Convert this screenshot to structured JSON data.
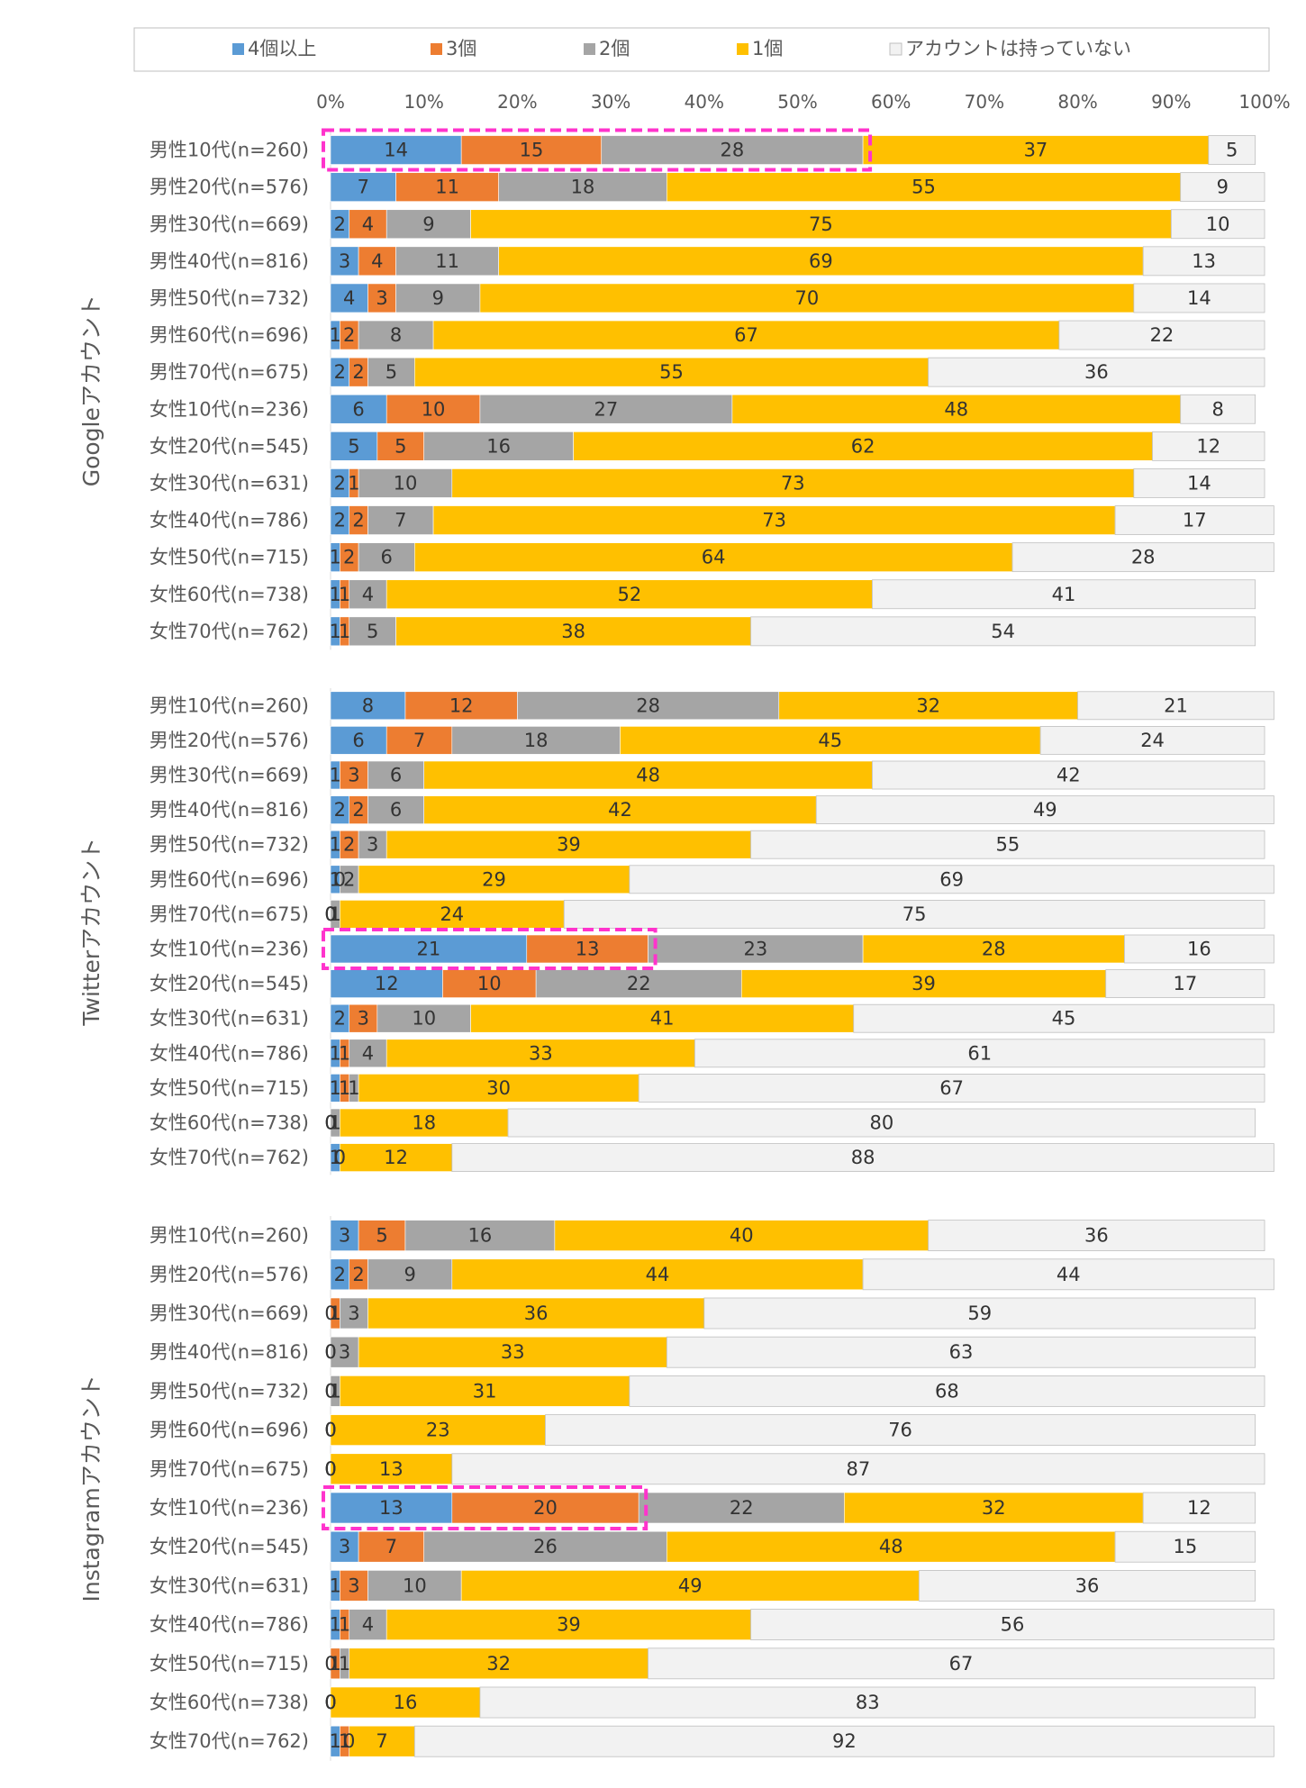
{
  "legend": [
    {
      "label": "4個以上",
      "color": "#5B9BD5"
    },
    {
      "label": "3個",
      "color": "#ED7D31"
    },
    {
      "label": "2個",
      "color": "#A5A5A5"
    },
    {
      "label": "1個",
      "color": "#FFC000"
    },
    {
      "label": "アカウントは持っていない",
      "color": "#F2F2F2"
    }
  ],
  "chart_data": {
    "type": "bar",
    "orientation": "horizontal",
    "stacked": true,
    "percent_stacked": true,
    "xlim": [
      0,
      100
    ],
    "x_ticks": [
      "0%",
      "10%",
      "20%",
      "30%",
      "40%",
      "50%",
      "60%",
      "70%",
      "80%",
      "90%",
      "100%"
    ],
    "grid": false,
    "legend_position": "top",
    "series_names": [
      "4個以上",
      "3個",
      "2個",
      "1個",
      "アカウントは持っていない"
    ],
    "series_colors": [
      "#5B9BD5",
      "#ED7D31",
      "#A5A5A5",
      "#FFC000",
      "#F2F2F2"
    ],
    "groups": [
      {
        "label": "Googleアカウント",
        "categories": [
          "男性10代(n=260)",
          "男性20代(n=576)",
          "男性30代(n=669)",
          "男性40代(n=816)",
          "男性50代(n=732)",
          "男性60代(n=696)",
          "男性70代(n=675)",
          "女性10代(n=236)",
          "女性20代(n=545)",
          "女性30代(n=631)",
          "女性40代(n=786)",
          "女性50代(n=715)",
          "女性60代(n=738)",
          "女性70代(n=762)"
        ],
        "values": [
          [
            14,
            15,
            28,
            37,
            5
          ],
          [
            7,
            11,
            18,
            55,
            9
          ],
          [
            2,
            4,
            9,
            75,
            10
          ],
          [
            3,
            4,
            11,
            69,
            13
          ],
          [
            4,
            3,
            9,
            70,
            14
          ],
          [
            1,
            2,
            8,
            67,
            22
          ],
          [
            2,
            2,
            5,
            55,
            36
          ],
          [
            6,
            10,
            27,
            48,
            8
          ],
          [
            5,
            5,
            16,
            62,
            12
          ],
          [
            2,
            1,
            10,
            73,
            14
          ],
          [
            2,
            2,
            7,
            73,
            17
          ],
          [
            1,
            2,
            6,
            64,
            28
          ],
          [
            1,
            1,
            4,
            52,
            41
          ],
          [
            1,
            1,
            5,
            38,
            54
          ]
        ],
        "highlights": [
          {
            "row": 0,
            "series_from": 0,
            "series_to": 2
          }
        ]
      },
      {
        "label": "Twitterアカウント",
        "categories": [
          "男性10代(n=260)",
          "男性20代(n=576)",
          "男性30代(n=669)",
          "男性40代(n=816)",
          "男性50代(n=732)",
          "男性60代(n=696)",
          "男性70代(n=675)",
          "女性10代(n=236)",
          "女性20代(n=545)",
          "女性30代(n=631)",
          "女性40代(n=786)",
          "女性50代(n=715)",
          "女性60代(n=738)",
          "女性70代(n=762)"
        ],
        "values": [
          [
            8,
            12,
            28,
            32,
            21
          ],
          [
            6,
            7,
            18,
            45,
            24
          ],
          [
            1,
            3,
            6,
            48,
            42
          ],
          [
            2,
            2,
            6,
            42,
            49
          ],
          [
            1,
            2,
            3,
            39,
            55
          ],
          [
            1,
            0,
            2,
            29,
            69
          ],
          [
            0,
            0,
            1,
            24,
            75
          ],
          [
            21,
            13,
            23,
            28,
            16
          ],
          [
            12,
            10,
            22,
            39,
            17
          ],
          [
            2,
            3,
            10,
            41,
            45
          ],
          [
            1,
            1,
            4,
            33,
            61
          ],
          [
            1,
            1,
            1,
            30,
            67
          ],
          [
            0,
            0,
            1,
            18,
            80
          ],
          [
            1,
            0,
            0,
            12,
            88
          ]
        ],
        "highlights": [
          {
            "row": 7,
            "series_from": 0,
            "series_to": 1
          }
        ]
      },
      {
        "label": "Instagramアカウント",
        "categories": [
          "男性10代(n=260)",
          "男性20代(n=576)",
          "男性30代(n=669)",
          "男性40代(n=816)",
          "男性50代(n=732)",
          "男性60代(n=696)",
          "男性70代(n=675)",
          "女性10代(n=236)",
          "女性20代(n=545)",
          "女性30代(n=631)",
          "女性40代(n=786)",
          "女性50代(n=715)",
          "女性60代(n=738)",
          "女性70代(n=762)"
        ],
        "values": [
          [
            3,
            5,
            16,
            40,
            36
          ],
          [
            2,
            2,
            9,
            44,
            44
          ],
          [
            0,
            1,
            3,
            36,
            59
          ],
          [
            0,
            0,
            3,
            33,
            63
          ],
          [
            0,
            0,
            1,
            31,
            68
          ],
          [
            0,
            0,
            0,
            23,
            76
          ],
          [
            0,
            0,
            0,
            13,
            87
          ],
          [
            13,
            20,
            22,
            32,
            12
          ],
          [
            3,
            7,
            26,
            48,
            15
          ],
          [
            1,
            3,
            10,
            49,
            36
          ],
          [
            1,
            1,
            4,
            39,
            56
          ],
          [
            0,
            1,
            1,
            32,
            67
          ],
          [
            0,
            0,
            0,
            16,
            83
          ],
          [
            1,
            1,
            0,
            7,
            92
          ]
        ],
        "highlights": [
          {
            "row": 7,
            "series_from": 0,
            "series_to": 1
          }
        ]
      }
    ]
  }
}
